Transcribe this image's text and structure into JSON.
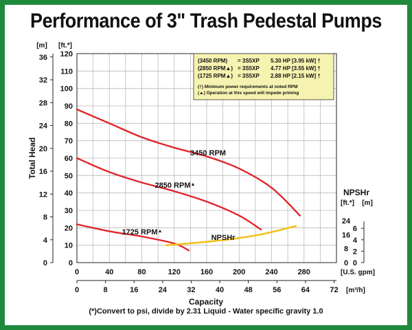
{
  "title": "Performance of 3\" Trash Pedestal Pumps",
  "footer_note": "(*)Convert to psi, divide by 2.31     Liquid - Water specific gravity 1.0",
  "colors": {
    "frame": "#1f8a3c",
    "pump_curve": "#e0262b",
    "npsh_curve": "#f2c21a",
    "legend_bg": "#f6f2b0",
    "grid": "#b9b9b9"
  },
  "chart_data": {
    "type": "line",
    "title": "Performance of 3\" Trash Pedestal Pumps",
    "xlabel": "Capacity",
    "ylabel": "Total Head",
    "x_unit": "[U.S. gpm]",
    "x2_unit": "[m³/h]",
    "y_unit": "[ft.*]",
    "y2_unit": "[m]",
    "npsh_label": "NPSHr",
    "npsh_unit_ft": "[ft.*]",
    "npsh_unit_m": "[m]",
    "xlim": [
      0,
      320
    ],
    "ylim": [
      0,
      120
    ],
    "x_ticks": [
      0,
      40,
      80,
      120,
      160,
      200,
      240,
      280
    ],
    "x2_ticks": [
      0,
      8,
      16,
      24,
      32,
      40,
      48,
      56,
      64,
      72
    ],
    "y_ticks": [
      0,
      10,
      20,
      30,
      40,
      50,
      60,
      70,
      80,
      90,
      100,
      110,
      120
    ],
    "y2_ticks": [
      0,
      4,
      8,
      12,
      16,
      20,
      24,
      28,
      32,
      36
    ],
    "npsh_ft_ticks": [
      0,
      8,
      16,
      24
    ],
    "npsh_m_ticks": [
      0,
      2,
      4,
      6
    ],
    "grid": true,
    "series": [
      {
        "name": "3450 RPM",
        "x": [
          0,
          40,
          80,
          120,
          160,
          200,
          240,
          275
        ],
        "y": [
          88,
          80,
          72,
          66,
          61,
          54,
          43,
          27
        ]
      },
      {
        "name": "2850 RPM",
        "x": [
          0,
          40,
          80,
          120,
          160,
          200,
          227
        ],
        "y": [
          60,
          52,
          46,
          41,
          35,
          27,
          19
        ]
      },
      {
        "name": "1725 RPM",
        "x": [
          0,
          40,
          80,
          120,
          138
        ],
        "y": [
          22,
          18,
          15,
          11,
          7
        ]
      },
      {
        "name": "NPSHr",
        "x": [
          110,
          150,
          190,
          230,
          270
        ],
        "y": [
          10,
          11.5,
          13.5,
          16.5,
          21
        ]
      }
    ],
    "curve_labels": [
      "3450 RPM",
      "2850 RPM",
      "1725 RPM",
      "NPSHr"
    ],
    "triangle": "▲",
    "legend": {
      "rows": [
        {
          "rpm": "(3450 RPM)",
          "model": "= 3S5XP",
          "power": "5.30 HP [3.95 kW] †"
        },
        {
          "rpm": "(2850 RPM▲)",
          "model": "= 3S5XP",
          "power": "4.77 HP [3.55 kW] †"
        },
        {
          "rpm": "(1725 RPM▲)",
          "model": "= 3S5XP",
          "power": "2.88 HP [2.15 kW] †"
        }
      ],
      "notes": [
        "(†) Minimum power requirements at noted RPM",
        "(▲) Operation at this speed will impede priming"
      ]
    }
  }
}
